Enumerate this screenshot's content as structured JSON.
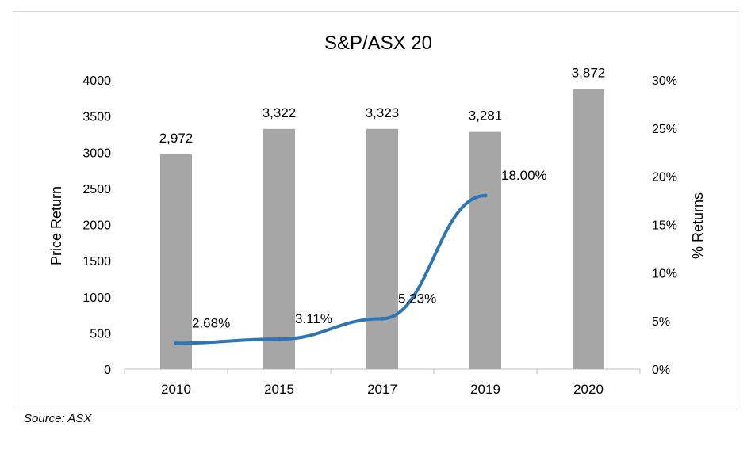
{
  "source_note": "Source: ASX",
  "chart_data": {
    "type": "bar",
    "title": "S&P/ASX 20",
    "categories": [
      "2010",
      "2015",
      "2017",
      "2019",
      "2020"
    ],
    "series": [
      {
        "type": "bar",
        "axis": "left",
        "values": [
          2972,
          3322,
          3323,
          3281,
          3872
        ],
        "data_labels": [
          "2,972",
          "3,322",
          "3,323",
          "3,281",
          "3,872"
        ],
        "color": "#a6a6a6"
      },
      {
        "type": "line",
        "axis": "right",
        "values": [
          2.68,
          3.11,
          5.23,
          18.0,
          null
        ],
        "data_labels": [
          "2.68%",
          "3.11%",
          "5.23%",
          "18.00%",
          null
        ],
        "color": "#2e75b6"
      }
    ],
    "ylabel": "Price Return",
    "y2label": "% Returns",
    "ylim": [
      0,
      4000
    ],
    "y2lim": [
      0,
      30
    ],
    "yticks": [
      "0",
      "500",
      "1000",
      "1500",
      "2000",
      "2500",
      "3000",
      "3500",
      "4000"
    ],
    "y2ticks": [
      "0%",
      "5%",
      "10%",
      "15%",
      "20%",
      "25%",
      "30%"
    ],
    "grid": false,
    "legend": "none"
  }
}
